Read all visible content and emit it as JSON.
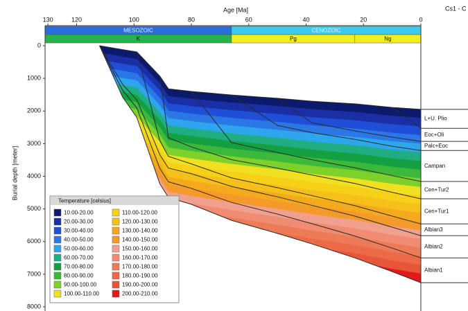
{
  "chart_data": {
    "type": "burial",
    "xlabel": "Age [Ma]",
    "ylabel": "Burial depth [meter]",
    "corner_text": "Cs1 - C",
    "xlim": [
      131,
      0
    ],
    "xticks": [
      130,
      120,
      100,
      80,
      60,
      40,
      20,
      0
    ],
    "ylim": [
      0,
      8000
    ],
    "yticks": [
      0,
      1000,
      2000,
      3000,
      4000,
      5000,
      6000,
      7000,
      8000
    ],
    "eras": [
      {
        "name": "MESOZOIC",
        "start": 131,
        "end": 66,
        "color": "#2a6fd8"
      },
      {
        "name": "CENOZOIC",
        "start": 66,
        "end": 0,
        "color": "#3ccbee"
      }
    ],
    "periods": [
      {
        "name": "K",
        "start": 131,
        "end": 66,
        "color": "#27b34a"
      },
      {
        "name": "Pg",
        "start": 66,
        "end": 23,
        "color": "#f3ec22"
      },
      {
        "name": "Ng",
        "start": 23,
        "end": 0,
        "color": "#f3ec22"
      }
    ],
    "line_color": "#2a2a2a",
    "x": [
      112,
      104,
      99,
      91,
      88,
      80,
      66,
      50,
      38,
      23,
      10,
      0
    ],
    "surface": [
      0,
      120,
      190,
      930,
      1320,
      1400,
      1510,
      1610,
      1700,
      1780,
      1890,
      1950
    ],
    "series": [
      {
        "name": "L+U. Plio",
        "values": [
          null,
          null,
          null,
          null,
          null,
          null,
          null,
          null,
          null,
          null,
          1890,
          2530
        ]
      },
      {
        "name": "Eoc+Oli",
        "values": [
          null,
          null,
          null,
          null,
          null,
          null,
          null,
          1610,
          2360,
          2610,
          2800,
          2930
        ]
      },
      {
        "name": "Palc+Eoc",
        "values": [
          null,
          null,
          null,
          null,
          null,
          null,
          1510,
          2440,
          2660,
          2870,
          3080,
          3210
        ]
      },
      {
        "name": "Campan",
        "values": [
          null,
          null,
          null,
          null,
          null,
          1400,
          2970,
          3270,
          3490,
          3740,
          3980,
          4160
        ]
      },
      {
        "name": "Cen+Tur2",
        "values": [
          null,
          null,
          null,
          930,
          2820,
          3100,
          3490,
          3750,
          3960,
          4220,
          4490,
          4690
        ]
      },
      {
        "name": "Cen+Tur1",
        "values": [
          null,
          null,
          190,
          2910,
          3390,
          3620,
          4050,
          4350,
          4590,
          4900,
          5220,
          5460
        ]
      },
      {
        "name": "Albian3",
        "values": [
          0,
          1180,
          1660,
          3340,
          3750,
          3920,
          4310,
          4630,
          4890,
          5220,
          5560,
          5820
        ]
      },
      {
        "name": "Albian2",
        "values": [
          0,
          1360,
          1910,
          3760,
          4170,
          4370,
          4800,
          5160,
          5450,
          5830,
          6200,
          6500
        ]
      },
      {
        "name": "Albian1",
        "values": [
          0,
          1570,
          2200,
          4230,
          4650,
          4860,
          5350,
          5750,
          6070,
          6500,
          6920,
          7260
        ]
      }
    ],
    "legend": {
      "title": "Temperature [celsius]",
      "items": [
        {
          "label": "10.00-20.00",
          "color": "#0b1a6c"
        },
        {
          "label": "20.00-30.00",
          "color": "#1a2fa6"
        },
        {
          "label": "30.00-40.00",
          "color": "#1f4fd6"
        },
        {
          "label": "40.00-50.00",
          "color": "#2a78e6"
        },
        {
          "label": "50.00-60.00",
          "color": "#2ea6ee"
        },
        {
          "label": "60.00-70.00",
          "color": "#1fae82"
        },
        {
          "label": "70.00-80.00",
          "color": "#13a040"
        },
        {
          "label": "80.00-90.00",
          "color": "#3cb83a"
        },
        {
          "label": "90.00-100.00",
          "color": "#7ed12a"
        },
        {
          "label": "100.00-110.00",
          "color": "#f0e020"
        },
        {
          "label": "110.00-120.00",
          "color": "#f7d117"
        },
        {
          "label": "120.00-130.00",
          "color": "#f6c01a"
        },
        {
          "label": "130.00-140.00",
          "color": "#f5aa1e"
        },
        {
          "label": "140.00-150.00",
          "color": "#f39a2a"
        },
        {
          "label": "150.00-160.00",
          "color": "#f2a08e"
        },
        {
          "label": "160.00-170.00",
          "color": "#f08c72"
        },
        {
          "label": "170.00-180.00",
          "color": "#ee7b58"
        },
        {
          "label": "180.00-190.00",
          "color": "#ec6a48"
        },
        {
          "label": "190.00-200.00",
          "color": "#e8563a"
        },
        {
          "label": "200.00-210.00",
          "color": "#e3191a"
        }
      ]
    }
  }
}
